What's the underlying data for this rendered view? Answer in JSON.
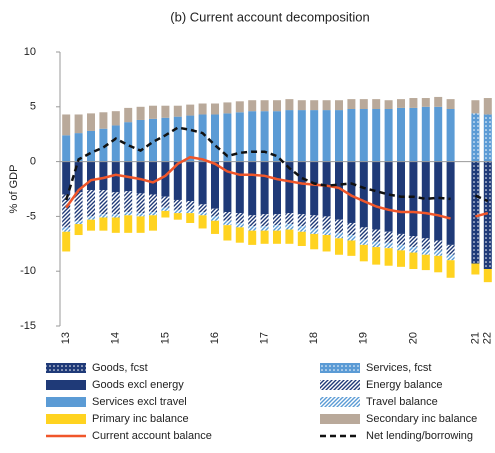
{
  "chart_data": {
    "type": "bar",
    "title": "(b) Current account decomposition",
    "y_label": "% of GDP",
    "categories": [
      "13",
      null,
      null,
      null,
      "14",
      null,
      null,
      null,
      "15",
      null,
      null,
      null,
      "16",
      null,
      null,
      null,
      "17",
      null,
      null,
      null,
      "18",
      null,
      null,
      null,
      "19",
      null,
      null,
      null,
      "20",
      null,
      null,
      null,
      null,
      "21",
      "22"
    ],
    "ylim": [
      -15,
      10
    ],
    "yticks": [
      -15,
      -10,
      -5,
      0,
      5,
      10
    ],
    "grid": false,
    "series": [
      {
        "name": "Goods, fcst",
        "type": "bar",
        "color": "#1f3a78",
        "pattern": "dots",
        "values": [
          null,
          null,
          null,
          null,
          null,
          null,
          null,
          null,
          null,
          null,
          null,
          null,
          null,
          null,
          null,
          null,
          null,
          null,
          null,
          null,
          null,
          null,
          null,
          null,
          null,
          null,
          null,
          null,
          null,
          null,
          null,
          null,
          null,
          -9.3,
          -9.8
        ]
      },
      {
        "name": "Services, fcst",
        "type": "bar",
        "color": "#5b9bd5",
        "pattern": "dots",
        "values": [
          null,
          null,
          null,
          null,
          null,
          null,
          null,
          null,
          null,
          null,
          null,
          null,
          null,
          null,
          null,
          null,
          null,
          null,
          null,
          null,
          null,
          null,
          null,
          null,
          null,
          null,
          null,
          null,
          null,
          null,
          null,
          null,
          null,
          4.4,
          4.3
        ]
      },
      {
        "name": "Goods excl energy",
        "type": "bar",
        "color": "#1f3a78",
        "values": [
          -3.0,
          -2.8,
          -2.6,
          -2.6,
          -2.8,
          -2.7,
          -2.9,
          -3.0,
          -3.2,
          -3.5,
          -3.6,
          -3.9,
          -4.3,
          -4.6,
          -4.7,
          -4.9,
          -4.8,
          -4.8,
          -4.7,
          -4.8,
          -4.9,
          -5.0,
          -5.3,
          -5.6,
          -6.0,
          -6.2,
          -6.4,
          -6.6,
          -6.8,
          -7.0,
          -7.2,
          -7.6,
          null,
          null,
          null
        ]
      },
      {
        "name": "Energy balance",
        "type": "bar",
        "color": "#1f3a78",
        "pattern": "hatch",
        "values": [
          -3.0,
          -2.6,
          -2.4,
          -2.2,
          -2.0,
          -1.9,
          -1.8,
          -1.6,
          -1.0,
          -0.9,
          -0.8,
          -0.7,
          -0.7,
          -0.8,
          -0.9,
          -1.0,
          -1.1,
          -1.0,
          -1.0,
          -1.1,
          -1.2,
          -1.2,
          -1.2,
          -1.1,
          -1.1,
          -1.1,
          -1.0,
          -1.0,
          -1.0,
          -1.0,
          -0.9,
          -0.9,
          null,
          null,
          null
        ]
      },
      {
        "name": "Services excl travel",
        "type": "bar",
        "color": "#5b9bd5",
        "values": [
          2.4,
          2.6,
          2.8,
          3.0,
          3.3,
          3.6,
          3.8,
          3.9,
          4.0,
          4.1,
          4.2,
          4.3,
          4.3,
          4.4,
          4.5,
          4.6,
          4.6,
          4.6,
          4.7,
          4.7,
          4.7,
          4.7,
          4.7,
          4.8,
          4.8,
          4.8,
          4.8,
          4.9,
          4.9,
          5.0,
          5.0,
          4.8,
          null,
          null,
          null
        ]
      },
      {
        "name": "Travel balance",
        "type": "bar",
        "color": "#5b9bd5",
        "pattern": "hatch",
        "values": [
          -0.4,
          -0.3,
          -0.3,
          -0.3,
          -0.3,
          -0.3,
          -0.3,
          -0.3,
          -0.3,
          -0.3,
          -0.3,
          -0.3,
          -0.4,
          -0.4,
          -0.4,
          -0.4,
          -0.4,
          -0.5,
          -0.5,
          -0.5,
          -0.5,
          -0.5,
          -0.5,
          -0.5,
          -0.5,
          -0.5,
          -0.5,
          -0.5,
          -0.5,
          -0.5,
          -0.5,
          -0.5,
          null,
          null,
          null
        ]
      },
      {
        "name": "Primary inc balance",
        "type": "bar",
        "color": "#ffd320",
        "values": [
          -1.8,
          -1.0,
          -1.0,
          -1.2,
          -1.4,
          -1.6,
          -1.5,
          -1.4,
          -0.6,
          -0.6,
          -0.9,
          -1.2,
          -1.2,
          -1.4,
          -1.4,
          -1.3,
          -1.2,
          -1.2,
          -1.3,
          -1.3,
          -1.4,
          -1.5,
          -1.5,
          -1.4,
          -1.5,
          -1.6,
          -1.6,
          -1.5,
          -1.5,
          -1.4,
          -1.5,
          -1.6,
          null,
          -1.0,
          -1.2
        ]
      },
      {
        "name": "Secondary inc balance",
        "type": "bar",
        "color": "#b9a99a",
        "values": [
          1.9,
          1.7,
          1.6,
          1.5,
          1.3,
          1.3,
          1.2,
          1.2,
          1.1,
          1.0,
          1.0,
          1.0,
          1.0,
          1.0,
          1.0,
          1.0,
          1.0,
          1.0,
          1.0,
          0.9,
          0.9,
          0.9,
          0.9,
          0.9,
          0.9,
          0.9,
          0.8,
          0.8,
          0.9,
          0.8,
          0.9,
          0.9,
          null,
          1.2,
          1.5
        ]
      },
      {
        "name": "Current account balance",
        "type": "line",
        "color": "#f0562a",
        "values": [
          -4.2,
          -2.6,
          -1.7,
          -1.5,
          -1.2,
          -1.4,
          -1.6,
          -1.9,
          -1.3,
          -0.2,
          0.4,
          0.2,
          -0.2,
          -0.9,
          -1.2,
          -1.2,
          -1.3,
          -1.6,
          -1.8,
          -2.0,
          -2.1,
          -2.2,
          -2.4,
          -3.1,
          -3.6,
          -4.1,
          -4.4,
          -4.6,
          -4.6,
          -4.7,
          -4.9,
          -5.2,
          null,
          -5.0,
          -4.7
        ]
      },
      {
        "name": "Net lending/borrowing",
        "type": "line",
        "color": "#111111",
        "dash": true,
        "values": [
          -3.5,
          0.2,
          0.8,
          1.3,
          2.1,
          1.5,
          1.0,
          1.8,
          2.4,
          3.1,
          2.9,
          2.6,
          1.5,
          0.5,
          0.8,
          0.9,
          0.9,
          0.5,
          -0.6,
          -1.5,
          -2.0,
          -2.2,
          -2.1,
          -2.0,
          -2.4,
          -2.7,
          -3.0,
          -3.2,
          -3.2,
          -3.4,
          -3.3,
          -3.4,
          null,
          -3.1,
          -3.6
        ]
      }
    ]
  }
}
